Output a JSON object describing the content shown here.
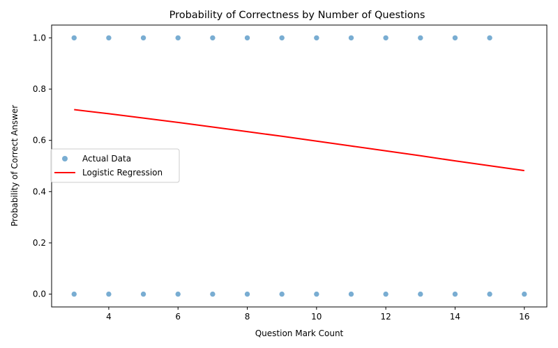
{
  "chart_data": {
    "type": "scatter",
    "title": "Probability of Correctness by Number of Questions",
    "xlabel": "Question Mark Count",
    "ylabel": "Probability of Correct Answer",
    "xlim": [
      2.35,
      16.65
    ],
    "ylim": [
      -0.05,
      1.05
    ],
    "xticks": [
      4,
      6,
      8,
      10,
      12,
      14,
      16
    ],
    "yticks": [
      0.0,
      0.2,
      0.4,
      0.6,
      0.8,
      1.0
    ],
    "xtick_labels": [
      "4",
      "6",
      "8",
      "10",
      "12",
      "14",
      "16"
    ],
    "ytick_labels": [
      "0.0",
      "0.2",
      "0.4",
      "0.6",
      "0.8",
      "1.0"
    ],
    "grid": false,
    "legend_position": "center-left",
    "series": [
      {
        "name": "Actual Data",
        "kind": "scatter",
        "color": "#1f77b4",
        "x": [
          3,
          4,
          5,
          6,
          7,
          8,
          9,
          10,
          11,
          12,
          13,
          14,
          15,
          3,
          4,
          5,
          6,
          7,
          8,
          9,
          10,
          11,
          12,
          13,
          14,
          15,
          16
        ],
        "y": [
          1,
          1,
          1,
          1,
          1,
          1,
          1,
          1,
          1,
          1,
          1,
          1,
          1,
          0,
          0,
          0,
          0,
          0,
          0,
          0,
          0,
          0,
          0,
          0,
          0,
          0,
          0
        ]
      },
      {
        "name": "Logistic Regression",
        "kind": "line",
        "color": "#ff0000",
        "x": [
          3,
          4,
          5,
          6,
          7,
          8,
          9,
          10,
          11,
          12,
          13,
          14,
          15,
          16
        ],
        "y": [
          0.72,
          0.704,
          0.687,
          0.67,
          0.652,
          0.634,
          0.616,
          0.597,
          0.578,
          0.559,
          0.54,
          0.52,
          0.501,
          0.482
        ]
      }
    ]
  }
}
